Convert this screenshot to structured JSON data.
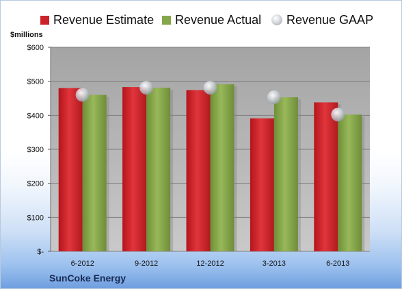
{
  "chart_data": {
    "type": "bar",
    "title": "",
    "xlabel": "",
    "ylabel": "$millions",
    "ylim": [
      0,
      600
    ],
    "ytick_values": [
      0,
      100,
      200,
      300,
      400,
      500,
      600
    ],
    "ytick_labels": [
      "$-",
      "$100",
      "$200",
      "$300",
      "$400",
      "$500",
      "$600"
    ],
    "categories": [
      "6-2012",
      "9-2012",
      "12-2012",
      "3-2013",
      "6-2013"
    ],
    "series": [
      {
        "name": "Revenue Estimate",
        "kind": "bar",
        "color": "#cc2229",
        "values": [
          480,
          483,
          474,
          391,
          438
        ]
      },
      {
        "name": "Revenue Actual",
        "kind": "bar",
        "color": "#86a64a",
        "values": [
          460,
          481,
          491,
          453,
          402
        ]
      },
      {
        "name": "Revenue GAAP",
        "kind": "marker",
        "color": "#b8bcc3",
        "values": [
          460,
          481,
          481,
          453,
          402
        ]
      }
    ],
    "grid": true,
    "legend_position": "top",
    "footer": "SunCoke Energy"
  }
}
